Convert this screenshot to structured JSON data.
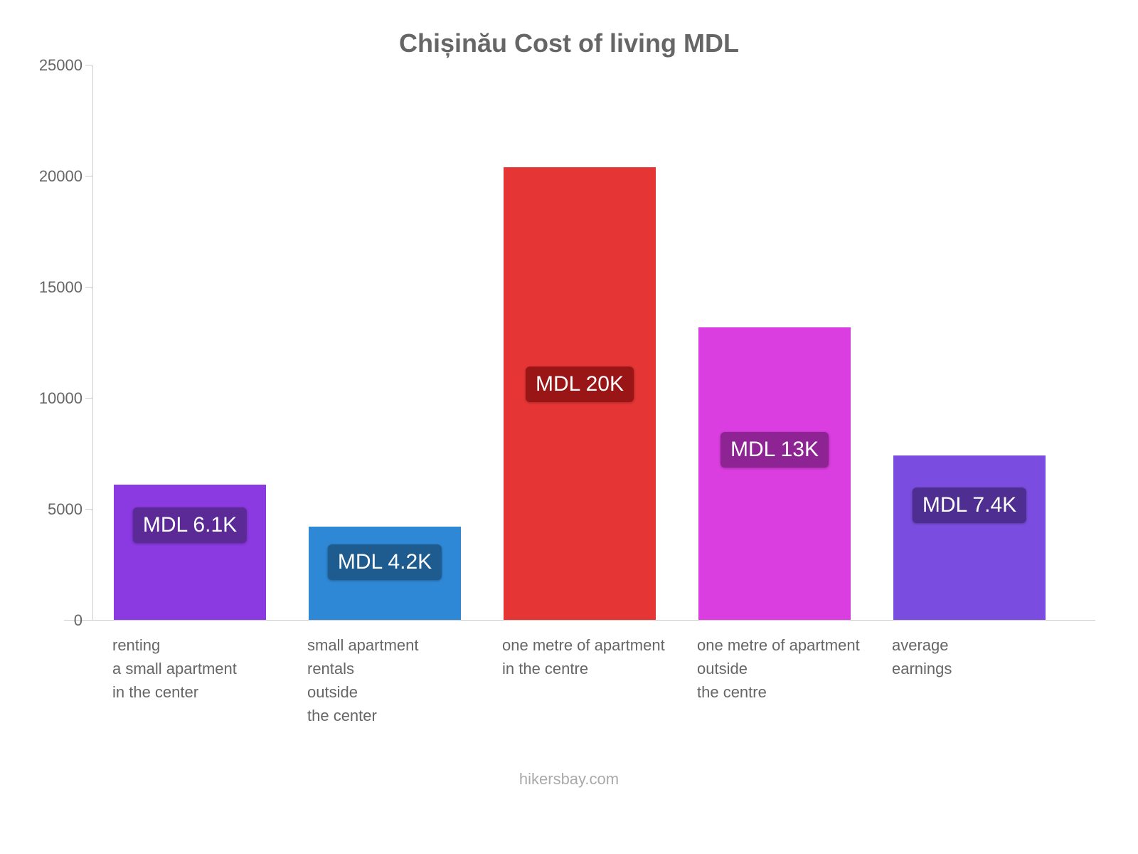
{
  "chart": {
    "type": "bar",
    "title": "Chișinău Cost of living MDL",
    "title_color": "#666666",
    "title_fontsize": 36,
    "background_color": "#ffffff",
    "axis_color": "#cccccc",
    "tick_label_color": "#666666",
    "tick_label_fontsize": 22,
    "y": {
      "min": 0,
      "max": 25000,
      "ticks": [
        0,
        5000,
        10000,
        15000,
        20000,
        25000
      ]
    },
    "bars": [
      {
        "category": "renting\na small apartment\nin the center",
        "value": 6100,
        "color": "#8a3ae0",
        "label": "MDL 6.1K",
        "label_bg": "#5c2a96",
        "label_offset_pct": 30
      },
      {
        "category": "small apartment\nrentals\noutside\nthe center",
        "value": 4200,
        "color": "#2f88d6",
        "label": "MDL 4.2K",
        "label_bg": "#1e5b8f",
        "label_offset_pct": 38
      },
      {
        "category": "one metre of apartment\nin the centre",
        "value": 20400,
        "color": "#e63535",
        "label": "MDL 20K",
        "label_bg": "#9a1616",
        "label_offset_pct": 48
      },
      {
        "category": "one metre of apartment\noutside\nthe centre",
        "value": 13200,
        "color": "#da3de0",
        "label": "MDL 13K",
        "label_bg": "#8e2393",
        "label_offset_pct": 42
      },
      {
        "category": "average\nearnings",
        "value": 7400,
        "color": "#7a4de0",
        "label": "MDL 7.4K",
        "label_bg": "#4e2f91",
        "label_offset_pct": 30
      }
    ],
    "bar_label_fontsize": 30,
    "bar_label_color": "#ffffff",
    "attribution": "hikersbay.com",
    "attribution_color": "#aaaaaa"
  }
}
